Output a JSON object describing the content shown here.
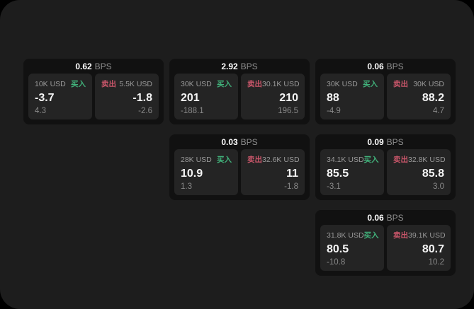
{
  "labels": {
    "bps_unit": "BPS",
    "buy": "买入",
    "sell": "卖出"
  },
  "colors": {
    "outer_background": "#000000",
    "surface_background": "#1d1d1d",
    "card_background": "#111111",
    "panel_background": "#242424",
    "buy_green": "#41b27b",
    "sell_red": "#c9566a",
    "value_text": "#f5f5f5",
    "muted_text": "#8f8f8f"
  },
  "cards": [
    {
      "bps": "0.62",
      "buy": {
        "size": "10K USD",
        "value": "-3.7",
        "sub": "4.3"
      },
      "sell": {
        "size": "5.5K USD",
        "value": "-1.8",
        "sub": "-2.6"
      }
    },
    {
      "bps": "2.92",
      "buy": {
        "size": "30K USD",
        "value": "201",
        "sub": "-188.1"
      },
      "sell": {
        "size": "30.1K USD",
        "value": "210",
        "sub": "196.5"
      }
    },
    {
      "bps": "0.06",
      "buy": {
        "size": "30K USD",
        "value": "88",
        "sub": "-4.9"
      },
      "sell": {
        "size": "30K USD",
        "value": "88.2",
        "sub": "4.7"
      }
    },
    {
      "bps": "0.03",
      "buy": {
        "size": "28K USD",
        "value": "10.9",
        "sub": "1.3"
      },
      "sell": {
        "size": "32.6K USD",
        "value": "11",
        "sub": "-1.8"
      }
    },
    {
      "bps": "0.09",
      "buy": {
        "size": "34.1K USD",
        "value": "85.5",
        "sub": "-3.1"
      },
      "sell": {
        "size": "32.8K USD",
        "value": "85.8",
        "sub": "3.0"
      }
    },
    {
      "bps": "0.06",
      "buy": {
        "size": "31.8K USD",
        "value": "80.5",
        "sub": "-10.8"
      },
      "sell": {
        "size": "39.1K USD",
        "value": "80.7",
        "sub": "10.2"
      }
    }
  ]
}
